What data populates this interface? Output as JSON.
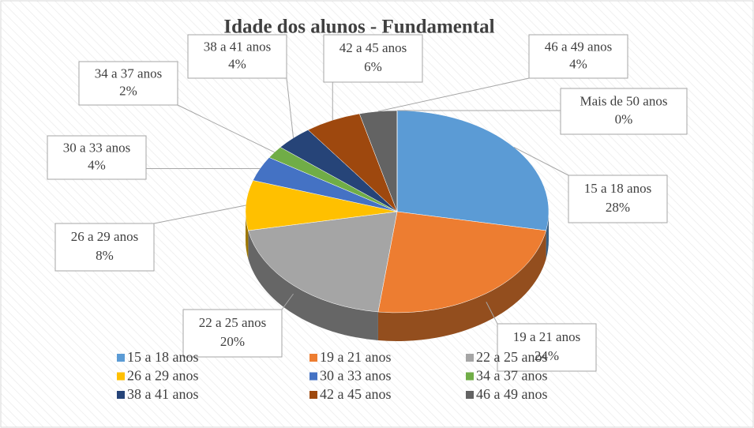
{
  "chart_data": {
    "type": "pie3d",
    "title": "Idade dos alunos - Fundamental",
    "categories": [
      "15 a 18 anos",
      "19 a 21 anos",
      "22 a 25 anos",
      "26 a 29 anos",
      "30 a  33 anos",
      "34 a 37 anos",
      "38 a 41 anos",
      "42 a 45 anos",
      "46 a 49 anos",
      "Mais de 50 anos"
    ],
    "values": [
      28,
      24,
      20,
      8,
      4,
      2,
      4,
      6,
      4,
      0
    ],
    "value_labels": [
      "28%",
      "24%",
      "20%",
      "8%",
      "4%",
      "2%",
      "4%",
      "6%",
      "4%",
      "0%"
    ],
    "colors": [
      "#5b9bd5",
      "#ed7d31",
      "#a5a5a5",
      "#ffc000",
      "#4472c4",
      "#70ad47",
      "#264478",
      "#9e480e",
      "#636363",
      "#997300"
    ],
    "legend": "bottom"
  }
}
